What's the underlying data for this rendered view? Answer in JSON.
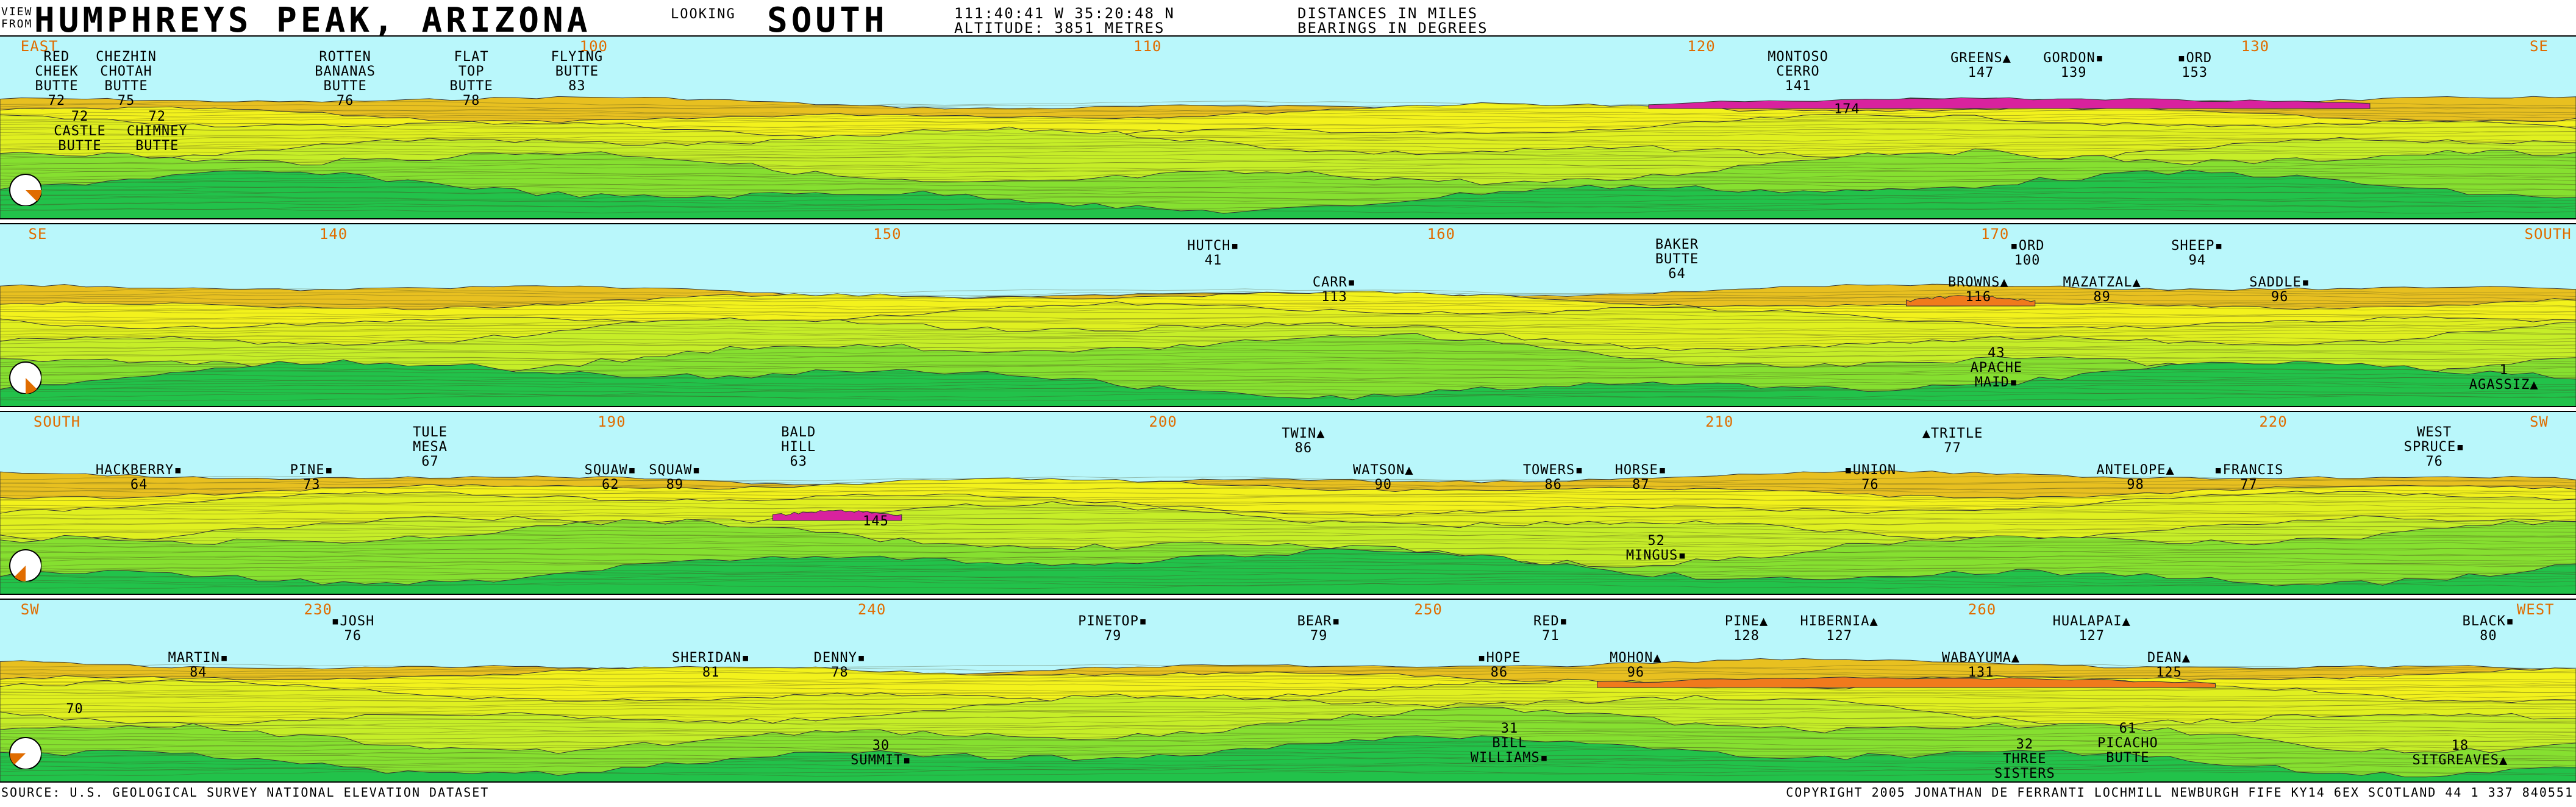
{
  "header": {
    "view_from_1": "VIEW",
    "view_from_2": "FROM",
    "location": "HUMPHREYS PEAK, ARIZONA",
    "looking_label": "LOOKING",
    "direction": "SOUTH",
    "coords": "111:40:41 W  35:20:48 N",
    "altitude": "ALTITUDE: 3851 METRES",
    "distances": "DISTANCES IN MILES",
    "bearings": "BEARINGS IN DEGREES"
  },
  "footer": {
    "source": "SOURCE: U.S. GEOLOGICAL SURVEY NATIONAL ELEVATION DATASET",
    "copyright": "COPYRIGHT 2005 JONATHAN DE FERRANTI  LOCHMILL  NEWBURGH  FIFE KY14 6EX  SCOTLAND 44 1 337 840551"
  },
  "colors": {
    "sky": "#b9f7fb",
    "tick": "#e06c00",
    "near": "#22c24a",
    "mid": "#c6ee28",
    "far": "#f3f21c",
    "farther": "#e8c020",
    "distant_orange": "#f07a1c",
    "distant_magenta": "#d8229e"
  },
  "panels": [
    {
      "ticks": [
        {
          "text": "EAST",
          "pos": 0.008
        },
        {
          "text": "100",
          "pos": 0.225
        },
        {
          "text": "110",
          "pos": 0.44
        },
        {
          "text": "120",
          "pos": 0.655
        },
        {
          "text": "130",
          "pos": 0.87
        },
        {
          "text": "SE",
          "pos": 0.982
        }
      ],
      "labels": [
        {
          "lines": [
            "RED",
            "CHEEK",
            "BUTTE",
            "72"
          ],
          "pos": 0.022,
          "row": 0
        },
        {
          "lines": [
            "CHEZHIN",
            "CHOTAH",
            "BUTTE",
            "75"
          ],
          "pos": 0.049,
          "row": 0
        },
        {
          "lines": [
            "ROTTEN",
            "BANANAS",
            "BUTTE",
            "76"
          ],
          "pos": 0.134,
          "row": 0
        },
        {
          "lines": [
            "FLAT",
            "TOP",
            "BUTTE",
            "78"
          ],
          "pos": 0.183,
          "row": 0
        },
        {
          "lines": [
            "FLYING",
            "BUTTE",
            "83"
          ],
          "pos": 0.224,
          "row": 0
        },
        {
          "lines": [
            "MONTOSO",
            "CERRO",
            "141"
          ],
          "pos": 0.698,
          "row": 0
        },
        {
          "lines": [
            "174"
          ],
          "pos": 0.717,
          "row": 1
        },
        {
          "lines": [
            "GREENS▲",
            "147"
          ],
          "pos": 0.769,
          "row": 0
        },
        {
          "lines": [
            "GORDON▪",
            "139"
          ],
          "pos": 0.805,
          "row": 0
        },
        {
          "lines": [
            "▪ORD",
            "153"
          ],
          "pos": 0.852,
          "row": 0
        },
        {
          "lines": [
            "72",
            "CASTLE",
            "BUTTE"
          ],
          "pos": 0.031,
          "row": 2
        },
        {
          "lines": [
            "72",
            "CHIMNEY",
            "BUTTE"
          ],
          "pos": 0.061,
          "row": 2
        }
      ]
    },
    {
      "ticks": [
        {
          "text": "SE",
          "pos": 0.011
        },
        {
          "text": "140",
          "pos": 0.124
        },
        {
          "text": "150",
          "pos": 0.339
        },
        {
          "text": "160",
          "pos": 0.554
        },
        {
          "text": "170",
          "pos": 0.769
        },
        {
          "text": "SOUTH",
          "pos": 0.98
        }
      ],
      "labels": [
        {
          "lines": [
            "HUTCH▪",
            "41"
          ],
          "pos": 0.471,
          "row": 0
        },
        {
          "lines": [
            "CARR▪",
            "113"
          ],
          "pos": 0.518,
          "row": 1
        },
        {
          "lines": [
            "BAKER",
            "BUTTE",
            "64"
          ],
          "pos": 0.651,
          "row": 0
        },
        {
          "lines": [
            "BROWNS▲",
            "116"
          ],
          "pos": 0.768,
          "row": 1
        },
        {
          "lines": [
            "▪ORD",
            "100"
          ],
          "pos": 0.787,
          "row": 0
        },
        {
          "lines": [
            "MAZATZAL▲",
            "89"
          ],
          "pos": 0.816,
          "row": 1
        },
        {
          "lines": [
            "SHEEP▪",
            "94"
          ],
          "pos": 0.853,
          "row": 0
        },
        {
          "lines": [
            "SADDLE▪",
            "96"
          ],
          "pos": 0.885,
          "row": 1
        },
        {
          "lines": [
            "43",
            "APACHE",
            "MAID▪"
          ],
          "pos": 0.775,
          "row": 3
        },
        {
          "lines": [
            "1",
            "AGASSIZ▲"
          ],
          "pos": 0.972,
          "row": 4
        }
      ]
    },
    {
      "ticks": [
        {
          "text": "SOUTH",
          "pos": 0.013
        },
        {
          "text": "190",
          "pos": 0.232
        },
        {
          "text": "200",
          "pos": 0.446
        },
        {
          "text": "210",
          "pos": 0.662
        },
        {
          "text": "220",
          "pos": 0.877
        },
        {
          "text": "SW",
          "pos": 0.982
        }
      ],
      "labels": [
        {
          "lines": [
            "HACKBERRY▪",
            "64"
          ],
          "pos": 0.054,
          "row": 1
        },
        {
          "lines": [
            "PINE▪",
            "73"
          ],
          "pos": 0.121,
          "row": 1
        },
        {
          "lines": [
            "TULE",
            "MESA",
            "67"
          ],
          "pos": 0.167,
          "row": 0
        },
        {
          "lines": [
            "SQUAW▪",
            "62"
          ],
          "pos": 0.237,
          "row": 1
        },
        {
          "lines": [
            "SQUAW▪",
            "89"
          ],
          "pos": 0.262,
          "row": 1
        },
        {
          "lines": [
            "BALD",
            "HILL",
            "63"
          ],
          "pos": 0.31,
          "row": 0
        },
        {
          "lines": [
            "145"
          ],
          "pos": 0.34,
          "row": 2
        },
        {
          "lines": [
            "TWIN▲",
            "86"
          ],
          "pos": 0.506,
          "row": 0
        },
        {
          "lines": [
            "WATSON▲",
            "90"
          ],
          "pos": 0.537,
          "row": 1
        },
        {
          "lines": [
            "TOWERS▪",
            "86"
          ],
          "pos": 0.603,
          "row": 1
        },
        {
          "lines": [
            "HORSE▪",
            "87"
          ],
          "pos": 0.637,
          "row": 1
        },
        {
          "lines": [
            "▪UNION",
            "76"
          ],
          "pos": 0.726,
          "row": 1
        },
        {
          "lines": [
            "▲TRITLE",
            "77"
          ],
          "pos": 0.758,
          "row": 0
        },
        {
          "lines": [
            "ANTELOPE▲",
            "98"
          ],
          "pos": 0.829,
          "row": 1
        },
        {
          "lines": [
            "▪FRANCIS",
            "77"
          ],
          "pos": 0.873,
          "row": 1
        },
        {
          "lines": [
            "WEST",
            "SPRUCE▪",
            "76"
          ],
          "pos": 0.945,
          "row": 0
        },
        {
          "lines": [
            "52",
            "MINGUS▪"
          ],
          "pos": 0.643,
          "row": 3
        }
      ]
    },
    {
      "ticks": [
        {
          "text": "SW",
          "pos": 0.008
        },
        {
          "text": "230",
          "pos": 0.118
        },
        {
          "text": "240",
          "pos": 0.333
        },
        {
          "text": "250",
          "pos": 0.549
        },
        {
          "text": "260",
          "pos": 0.764
        },
        {
          "text": "WEST",
          "pos": 0.977
        }
      ],
      "labels": [
        {
          "lines": [
            "70"
          ],
          "pos": 0.029,
          "row": 2
        },
        {
          "lines": [
            "MARTIN▪",
            "84"
          ],
          "pos": 0.077,
          "row": 1
        },
        {
          "lines": [
            "▪JOSH",
            "76"
          ],
          "pos": 0.137,
          "row": 0
        },
        {
          "lines": [
            "SHERIDAN▪",
            "81"
          ],
          "pos": 0.276,
          "row": 1
        },
        {
          "lines": [
            "DENNY▪",
            "78"
          ],
          "pos": 0.326,
          "row": 1
        },
        {
          "lines": [
            "PINETOP▪",
            "79"
          ],
          "pos": 0.432,
          "row": 0
        },
        {
          "lines": [
            "BEAR▪",
            "79"
          ],
          "pos": 0.512,
          "row": 0
        },
        {
          "lines": [
            "▪HOPE",
            "86"
          ],
          "pos": 0.582,
          "row": 1
        },
        {
          "lines": [
            "RED▪",
            "71"
          ],
          "pos": 0.602,
          "row": 0
        },
        {
          "lines": [
            "MOHON▲",
            "96"
          ],
          "pos": 0.635,
          "row": 1
        },
        {
          "lines": [
            "PINE▲",
            "128"
          ],
          "pos": 0.678,
          "row": 0
        },
        {
          "lines": [
            "HIBERNIA▲",
            "127"
          ],
          "pos": 0.714,
          "row": 0
        },
        {
          "lines": [
            "WABAYUMA▲",
            "131"
          ],
          "pos": 0.769,
          "row": 1
        },
        {
          "lines": [
            "HUALAPAI▲",
            "127"
          ],
          "pos": 0.812,
          "row": 0
        },
        {
          "lines": [
            "DEAN▲",
            "125"
          ],
          "pos": 0.842,
          "row": 1
        },
        {
          "lines": [
            "BLACK▪",
            "80"
          ],
          "pos": 0.966,
          "row": 0
        },
        {
          "lines": [
            "31",
            "BILL",
            "WILLIAMS▪"
          ],
          "pos": 0.586,
          "row": 3
        },
        {
          "lines": [
            "61",
            "PICACHO",
            "BUTTE"
          ],
          "pos": 0.826,
          "row": 3
        },
        {
          "lines": [
            "30",
            "SUMMIT▪"
          ],
          "pos": 0.342,
          "row": 4
        },
        {
          "lines": [
            "32",
            "THREE",
            "SISTERS"
          ],
          "pos": 0.786,
          "row": 4
        },
        {
          "lines": [
            "18",
            "SITGREAVES▲"
          ],
          "pos": 0.955,
          "row": 4
        }
      ]
    }
  ]
}
